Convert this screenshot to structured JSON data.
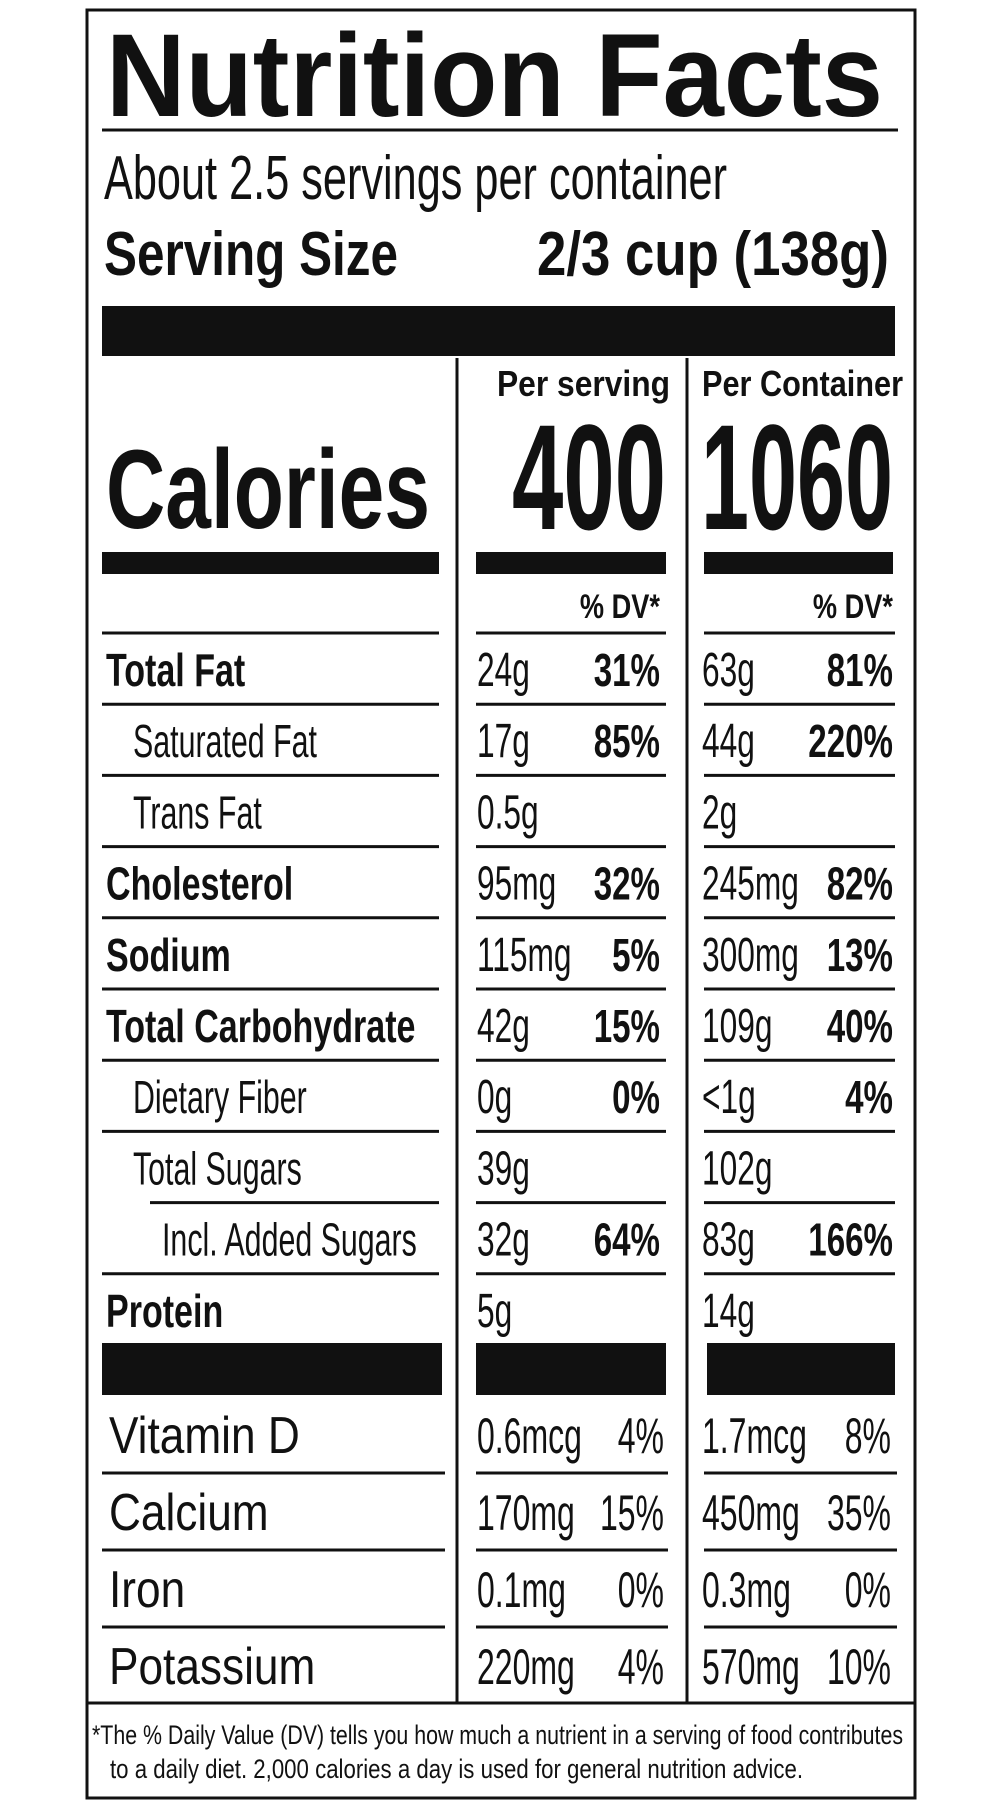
{
  "header": {
    "title": "Nutrition Facts",
    "servings": "About 2.5 servings per container",
    "serving_size_label": "Serving Size",
    "serving_size": "2/3 cup (138g)"
  },
  "calories": {
    "label": "Calories",
    "columns": [
      {
        "heading": "Per serving",
        "value": "400",
        "dv_heading": "% DV*"
      },
      {
        "heading": "Per Container",
        "value": "1060",
        "dv_heading": "% DV*"
      }
    ]
  },
  "nutrients": [
    {
      "name": "Total Fat",
      "serving": [
        "24g",
        "31%"
      ],
      "container": [
        "63g",
        "81%"
      ]
    },
    {
      "name": "Saturated Fat",
      "serving": [
        "17g",
        "85%"
      ],
      "container": [
        "44g",
        "220%"
      ]
    },
    {
      "name": "Trans Fat",
      "serving": [
        "0.5g"
      ],
      "container": [
        "2g"
      ]
    },
    {
      "name": "Cholesterol",
      "serving": [
        "95mg",
        "32%"
      ],
      "container": [
        "245mg",
        "82%"
      ]
    },
    {
      "name": "Sodium",
      "serving": [
        "115mg",
        "5%"
      ],
      "container": [
        "300mg",
        "13%"
      ]
    },
    {
      "name": "Total Carbohydrate",
      "serving": [
        "42g",
        "15%"
      ],
      "container": [
        "109g",
        "40%"
      ]
    },
    {
      "name": "Dietary Fiber",
      "serving": [
        "0g",
        "0%"
      ],
      "container": [
        "<1g",
        "4%"
      ]
    },
    {
      "name": "Total Sugars",
      "serving": [
        "39g"
      ],
      "container": [
        "102g"
      ]
    },
    {
      "name": "Incl. Added Sugars",
      "serving": [
        "32g",
        "64%"
      ],
      "container": [
        "83g",
        "166%"
      ]
    },
    {
      "name": "Protein",
      "serving": [
        "5g"
      ],
      "container": [
        "14g"
      ]
    }
  ],
  "vitamins": [
    {
      "name": "Vitamin D",
      "serving": [
        "0.6mcg",
        "4%"
      ],
      "container": [
        "1.7mcg",
        "8%"
      ]
    },
    {
      "name": "Calcium",
      "serving": [
        "170mg",
        "15%"
      ],
      "container": [
        "450mg",
        "35%"
      ]
    },
    {
      "name": "Iron",
      "serving": [
        "0.1mg",
        "0%"
      ],
      "container": [
        "0.3mg",
        "0%"
      ]
    },
    {
      "name": "Potassium",
      "serving": [
        "220mg",
        "4%"
      ],
      "container": [
        "570mg",
        "10%"
      ]
    }
  ],
  "footnote": [
    "*The % Daily Value (DV) tells you how much a nutrient in a serving of food contributes",
    "to a daily diet. 2,000 calories a day is used for general nutrition advice."
  ]
}
